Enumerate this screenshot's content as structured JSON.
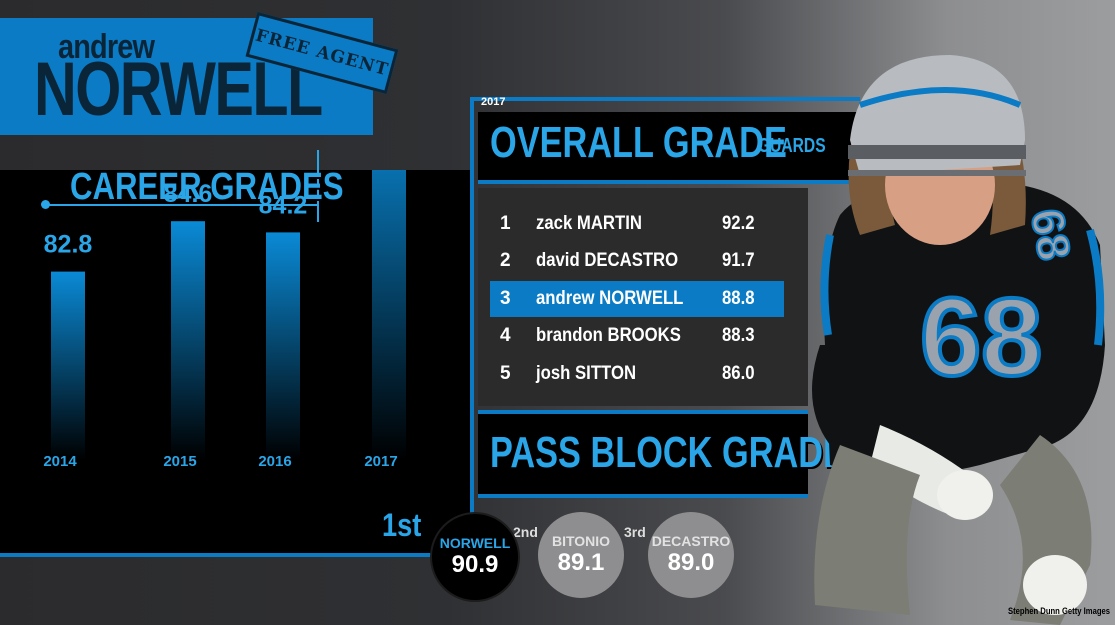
{
  "player": {
    "first_name": "andrew",
    "last_name": "NORWELL",
    "status_stamp": "FREE AGENT"
  },
  "career": {
    "title": "CAREER GRADES"
  },
  "chart_data": {
    "type": "bar",
    "title": "CAREER GRADES",
    "categories": [
      "2014",
      "2015",
      "2016",
      "2017"
    ],
    "values": [
      82.8,
      84.6,
      84.2,
      88.8
    ],
    "highlight_index": 3,
    "color": "#0a7bc4"
  },
  "overall": {
    "year": "2017",
    "title": "OVERALL GRADE",
    "subtitle": "GUARDS",
    "rows": [
      {
        "rank": "1",
        "name": "zack MARTIN",
        "grade": "92.2",
        "highlight": false
      },
      {
        "rank": "2",
        "name": "david DECASTRO",
        "grade": "91.7",
        "highlight": false
      },
      {
        "rank": "3",
        "name": "andrew NORWELL",
        "grade": "88.8",
        "highlight": true
      },
      {
        "rank": "4",
        "name": "brandon BROOKS",
        "grade": "88.3",
        "highlight": false
      },
      {
        "rank": "5",
        "name": "josh SITTON",
        "grade": "86.0",
        "highlight": false
      }
    ]
  },
  "pass_block": {
    "title": "PASS BLOCK GRADE",
    "first_label": "1st",
    "second_label": "2nd",
    "third_label": "3rd",
    "places": [
      {
        "name": "NORWELL",
        "grade": "90.9"
      },
      {
        "name": "BITONIO",
        "grade": "89.1"
      },
      {
        "name": "DECASTRO",
        "grade": "89.0"
      }
    ]
  },
  "jersey": {
    "number": "68"
  },
  "credit": "Stephen Dunn Getty Images",
  "colors": {
    "accent": "#0a7bc4",
    "accent_light": "#2aa6e8",
    "dark": "#0b2538"
  }
}
